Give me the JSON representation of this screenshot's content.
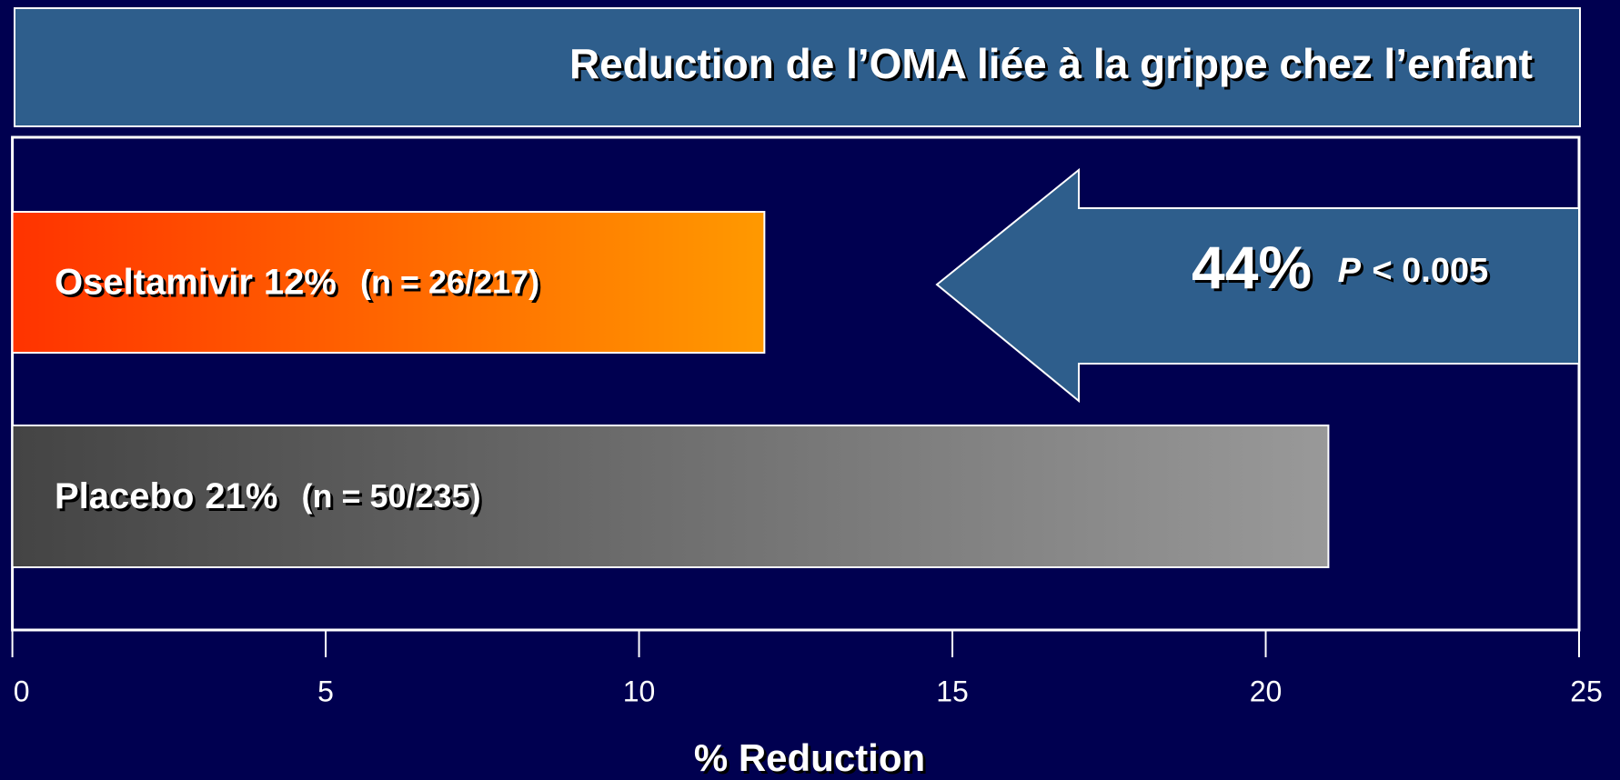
{
  "chart_data": {
    "type": "bar",
    "orientation": "horizontal",
    "title": "Reduction de l’OMA liée à la grippe chez l’enfant",
    "categories": [
      "Oseltamivir",
      "Placebo"
    ],
    "values": [
      12,
      21
    ],
    "value_labels": [
      "12%",
      "21%"
    ],
    "n_labels": [
      "(n = 26/217)",
      "(n = 50/235)"
    ],
    "gradients": [
      [
        "#ff3300",
        "#ff9900"
      ],
      [
        "#444444",
        "#999999"
      ]
    ],
    "xlim": [
      0,
      25
    ],
    "xticks": [
      0,
      5,
      10,
      15,
      20,
      25
    ],
    "xlabel": "% Reduction",
    "annotation": {
      "value": "44%",
      "p_symbol": "P",
      "p_value": "< 0.005",
      "color": "#2e5e8c"
    }
  }
}
